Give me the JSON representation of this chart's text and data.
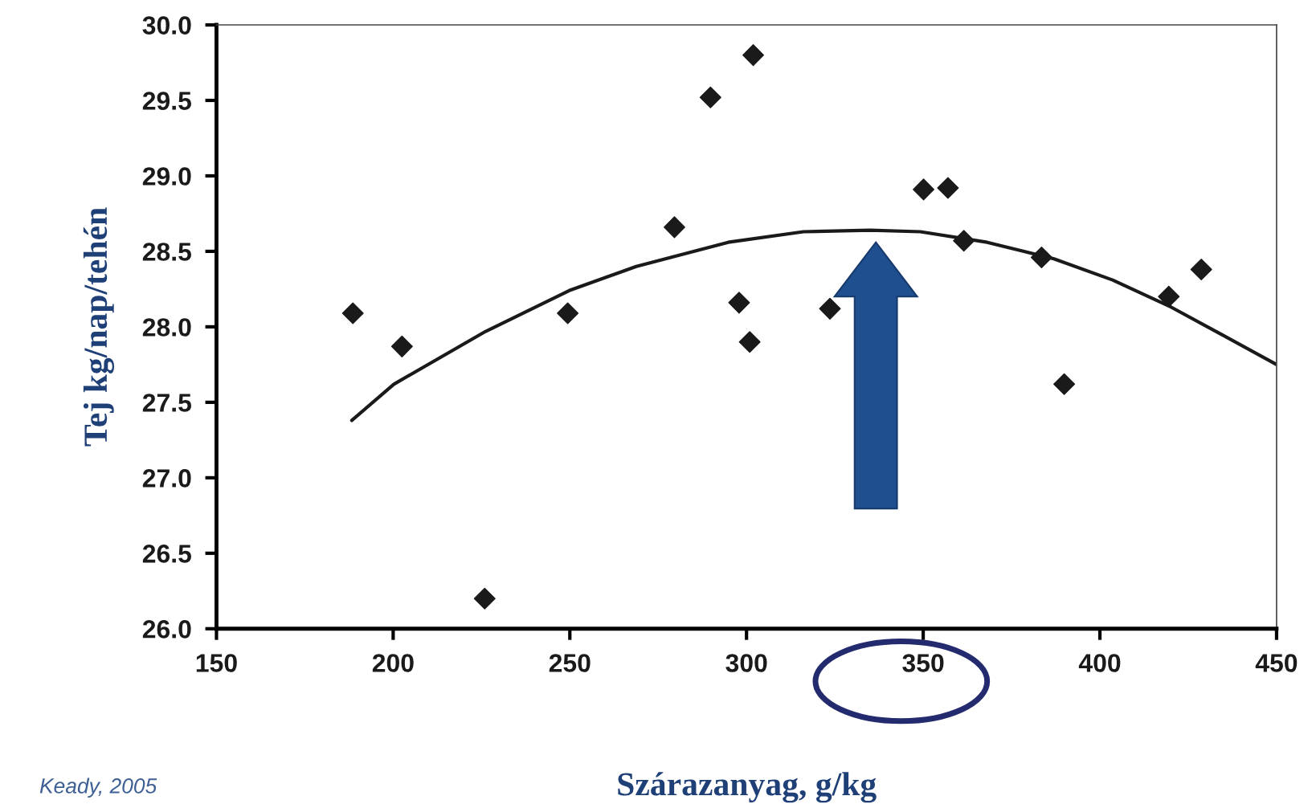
{
  "chart_data": {
    "type": "scatter",
    "xlabel": "Szárazanyag, g/kg",
    "ylabel": "Tej kg/nap/tehén",
    "xlim": [
      150,
      450
    ],
    "ylim": [
      26.0,
      30.0
    ],
    "xticks": [
      150,
      200,
      250,
      300,
      350,
      400,
      450
    ],
    "yticks": [
      {
        "value": 26.0,
        "label": "26.0"
      },
      {
        "value": 26.5,
        "label": "26.5"
      },
      {
        "value": 27.0,
        "label": "27.0"
      },
      {
        "value": 27.5,
        "label": "27.5"
      },
      {
        "value": 28.0,
        "label": "28.0"
      },
      {
        "value": 28.5,
        "label": "28.5"
      },
      {
        "value": 29.0,
        "label": "29.0"
      },
      {
        "value": 29.5,
        "label": "29.5"
      },
      {
        "value": 30.0,
        "label": "30.0"
      }
    ],
    "grid": false,
    "marker": "diamond",
    "series": [
      {
        "color": "#1a1a1a",
        "x": [
          188.6,
          202.5,
          225.9,
          249.4,
          279.6,
          289.8,
          301.9,
          297.9,
          300.9,
          323.6,
          350.1,
          357.0,
          361.5,
          383.5,
          389.9,
          419.5,
          428.7
        ],
        "values": [
          28.09,
          27.87,
          26.2,
          28.09,
          28.66,
          29.52,
          29.8,
          28.16,
          27.9,
          28.12,
          28.91,
          28.92,
          28.57,
          28.46,
          27.62,
          28.2,
          28.38
        ]
      },
      {
        "type": "line",
        "color": "#1a1a1a",
        "marker": "none",
        "x": [
          188.3,
          200.2,
          226.2,
          249.8,
          268.8,
          294.8,
          316.1,
          335,
          349.2,
          368.1,
          387,
          403.6,
          420.2,
          434.4,
          450
        ],
        "values": [
          27.38,
          27.62,
          27.97,
          28.24,
          28.4,
          28.56,
          28.63,
          28.64,
          28.63,
          28.56,
          28.45,
          28.31,
          28.13,
          27.95,
          27.75
        ]
      }
    ],
    "annotations": [
      "Keady, 2005"
    ]
  }
}
